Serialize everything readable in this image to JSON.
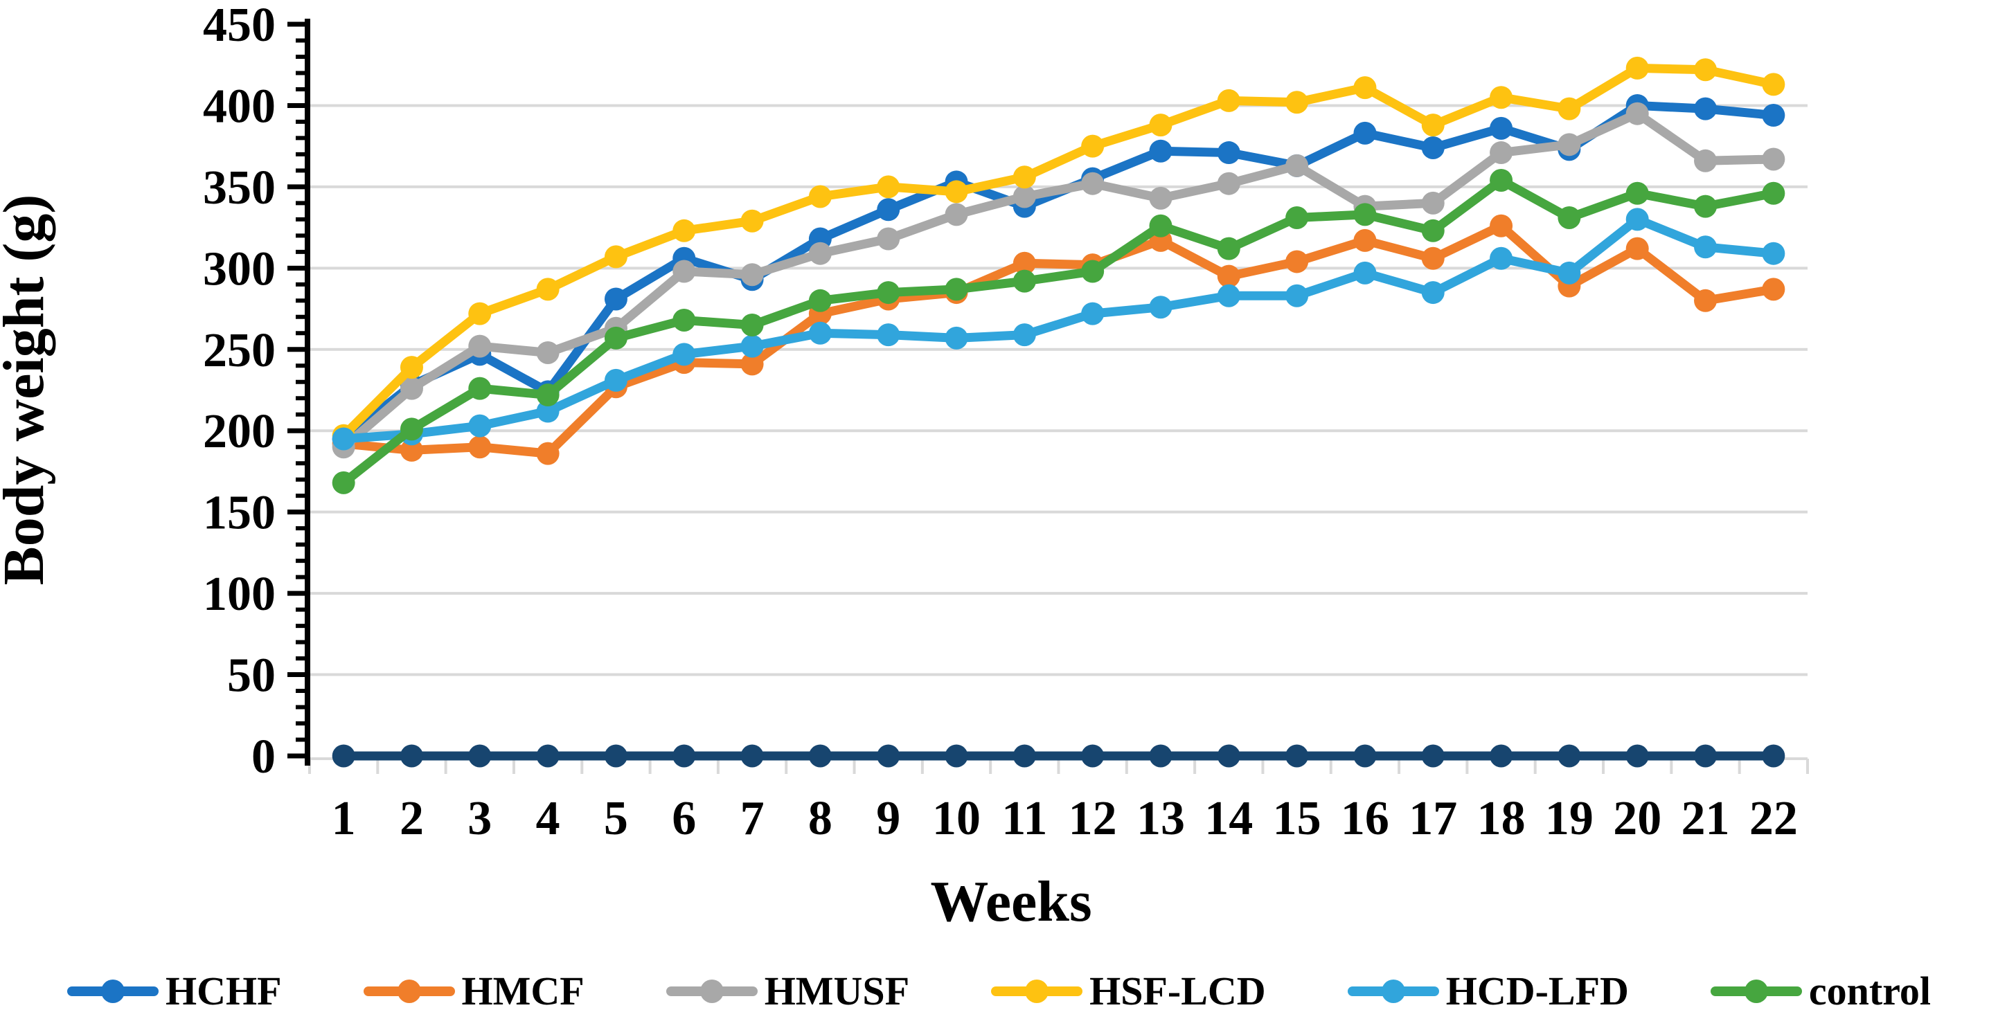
{
  "figure": {
    "background": "#ffffff",
    "axis_color": "#000000",
    "gridline_color": "#d9d9d9"
  },
  "chart_data": {
    "type": "line",
    "title": "",
    "xlabel": "Weeks",
    "ylabel": "Body weight (g)",
    "x": [
      1,
      2,
      3,
      4,
      5,
      6,
      7,
      8,
      9,
      10,
      11,
      12,
      13,
      14,
      15,
      16,
      17,
      18,
      19,
      20,
      21,
      22
    ],
    "ylim": [
      0,
      450
    ],
    "ytick_step": 50,
    "y_minor_tick_step": 10,
    "grid": "horizontal major gridlines, light gray",
    "legend_position": "bottom",
    "marker": "filled circle on thick line",
    "series": [
      {
        "name": "HCHF",
        "color": "#1B74C5",
        "values": [
          195,
          228,
          247,
          224,
          281,
          306,
          293,
          318,
          336,
          353,
          338,
          355,
          372,
          371,
          363,
          383,
          374,
          386,
          373,
          400,
          398,
          394
        ]
      },
      {
        "name": "HMCF",
        "color": "#F07E2A",
        "values": [
          192,
          188,
          190,
          186,
          227,
          242,
          241,
          272,
          281,
          285,
          303,
          302,
          317,
          295,
          304,
          317,
          306,
          326,
          289,
          312,
          280,
          287
        ]
      },
      {
        "name": "HMUSF",
        "color": "#A8A8A8",
        "values": [
          190,
          226,
          252,
          248,
          263,
          298,
          296,
          309,
          318,
          333,
          344,
          352,
          343,
          352,
          363,
          338,
          340,
          371,
          376,
          395,
          366,
          367
        ]
      },
      {
        "name": "HSF-LCD",
        "color": "#FEC211",
        "values": [
          197,
          239,
          272,
          287,
          307,
          323,
          329,
          344,
          350,
          347,
          356,
          375,
          388,
          403,
          402,
          411,
          388,
          405,
          398,
          423,
          422,
          413
        ]
      },
      {
        "name": "HCD-LFD",
        "color": "#31A5DC",
        "values": [
          195,
          198,
          203,
          212,
          231,
          247,
          252,
          260,
          259,
          257,
          259,
          272,
          276,
          283,
          283,
          297,
          285,
          306,
          297,
          330,
          313,
          309
        ]
      },
      {
        "name": "control",
        "color": "#46A63F",
        "values": [
          168,
          201,
          226,
          222,
          257,
          268,
          265,
          280,
          285,
          287,
          292,
          298,
          326,
          312,
          331,
          333,
          323,
          354,
          331,
          346,
          338,
          346
        ]
      },
      {
        "name": "",
        "note": "unlabeled dark navy series plotted at zero for every week (sits on the x-axis, not shown in legend)",
        "color": "#17456F",
        "values": [
          0,
          0,
          0,
          0,
          0,
          0,
          0,
          0,
          0,
          0,
          0,
          0,
          0,
          0,
          0,
          0,
          0,
          0,
          0,
          0,
          0,
          0
        ]
      }
    ]
  }
}
